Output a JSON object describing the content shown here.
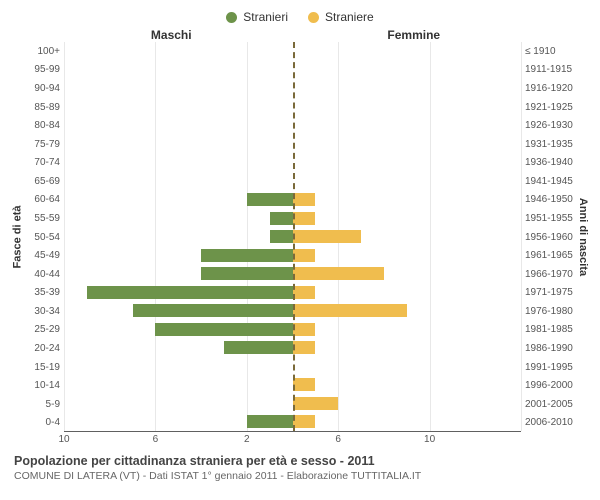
{
  "legend": {
    "male": {
      "label": "Stranieri",
      "color": "#6d934a"
    },
    "female": {
      "label": "Straniere",
      "color": "#f0bd4e"
    }
  },
  "headers": {
    "left": "Maschi",
    "right": "Femmine"
  },
  "axis_labels": {
    "left": "Fasce di età",
    "right": "Anni di nascita"
  },
  "caption": {
    "title": "Popolazione per cittadinanza straniera per età e sesso - 2011",
    "subtitle": "COMUNE DI LATERA (VT) - Dati ISTAT 1° gennaio 2011 - Elaborazione TUTTITALIA.IT"
  },
  "chart": {
    "type": "population-pyramid",
    "xlim": 10,
    "xticks": [
      10,
      6,
      2,
      2,
      6,
      10
    ],
    "grid_color": "#e8e8e8",
    "axis_color": "#606060",
    "center_line_color": "#7a6a3a",
    "background": "#ffffff",
    "grid_positions_pct": [
      0,
      20,
      40,
      50,
      60,
      80,
      100
    ],
    "rows": [
      {
        "age": "100+",
        "birth": "≤ 1910",
        "m": 0,
        "f": 0
      },
      {
        "age": "95-99",
        "birth": "1911-1915",
        "m": 0,
        "f": 0
      },
      {
        "age": "90-94",
        "birth": "1916-1920",
        "m": 0,
        "f": 0
      },
      {
        "age": "85-89",
        "birth": "1921-1925",
        "m": 0,
        "f": 0
      },
      {
        "age": "80-84",
        "birth": "1926-1930",
        "m": 0,
        "f": 0
      },
      {
        "age": "75-79",
        "birth": "1931-1935",
        "m": 0,
        "f": 0
      },
      {
        "age": "70-74",
        "birth": "1936-1940",
        "m": 0,
        "f": 0
      },
      {
        "age": "65-69",
        "birth": "1941-1945",
        "m": 0,
        "f": 0
      },
      {
        "age": "60-64",
        "birth": "1946-1950",
        "m": 2,
        "f": 1
      },
      {
        "age": "55-59",
        "birth": "1951-1955",
        "m": 1,
        "f": 1
      },
      {
        "age": "50-54",
        "birth": "1956-1960",
        "m": 1,
        "f": 3
      },
      {
        "age": "45-49",
        "birth": "1961-1965",
        "m": 4,
        "f": 1
      },
      {
        "age": "40-44",
        "birth": "1966-1970",
        "m": 4,
        "f": 4
      },
      {
        "age": "35-39",
        "birth": "1971-1975",
        "m": 9,
        "f": 1
      },
      {
        "age": "30-34",
        "birth": "1976-1980",
        "m": 7,
        "f": 5
      },
      {
        "age": "25-29",
        "birth": "1981-1985",
        "m": 6,
        "f": 1
      },
      {
        "age": "20-24",
        "birth": "1986-1990",
        "m": 3,
        "f": 1
      },
      {
        "age": "15-19",
        "birth": "1991-1995",
        "m": 0,
        "f": 0
      },
      {
        "age": "10-14",
        "birth": "1996-2000",
        "m": 0,
        "f": 1
      },
      {
        "age": "5-9",
        "birth": "2001-2005",
        "m": 0,
        "f": 2
      },
      {
        "age": "0-4",
        "birth": "2006-2010",
        "m": 2,
        "f": 1
      }
    ]
  }
}
